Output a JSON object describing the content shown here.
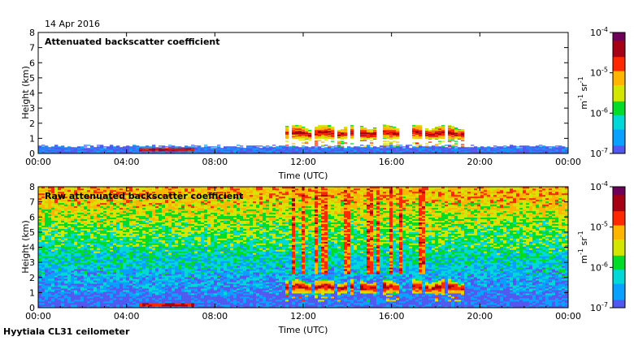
{
  "header": {
    "date": "14 Apr 2016"
  },
  "footer": {
    "instrument": "Hyytiala CL31 ceilometer"
  },
  "colors": {
    "scale": [
      "#ffffff",
      "#5058f0",
      "#0aa0ff",
      "#00d7d7",
      "#00dc28",
      "#d2e600",
      "#ffb400",
      "#ff2800",
      "#a50014",
      "#6e005a"
    ]
  },
  "chart_data": [
    {
      "type": "heatmap",
      "title": "Attenuated backscatter coefficient",
      "xlabel": "Time (UTC)",
      "ylabel": "Height (km)",
      "xlim": [
        0,
        24
      ],
      "ylim": [
        0,
        8
      ],
      "x_ticks": [
        "00:00",
        "04:00",
        "08:00",
        "12:00",
        "16:00",
        "20:00",
        "00:00"
      ],
      "y_ticks": [
        "0",
        "1",
        "2",
        "3",
        "4",
        "5",
        "6",
        "7",
        "8"
      ],
      "colorbar": {
        "scale": "log",
        "range": [
          1e-07,
          0.0001
        ],
        "ticks": [
          {
            "base": "10",
            "exp": "-7"
          },
          {
            "base": "10",
            "exp": "-6"
          },
          {
            "base": "10",
            "exp": "-5"
          },
          {
            "base": "10",
            "exp": "-4"
          }
        ],
        "unit": {
          "m": "m",
          "m_exp": "-1",
          "sr": "sr",
          "sr_exp": "-1"
        }
      },
      "features": [
        {
          "kind": "surface_layer",
          "x": [
            0,
            24
          ],
          "height_top_km": 0.45,
          "level": 1.4
        },
        {
          "kind": "low_band",
          "x": [
            4.6,
            7.0
          ],
          "height_km": [
            0.15,
            0.35
          ],
          "level": 7.5
        },
        {
          "kind": "cloud_cells",
          "x": [
            11.2,
            19.3
          ],
          "base_km": 1.0,
          "top_km": 1.8,
          "level": 6
        }
      ]
    },
    {
      "type": "heatmap",
      "title": "Raw attenuated backscatter coefficient",
      "xlabel": "Time (UTC)",
      "ylabel": "Height (km)",
      "xlim": [
        0,
        24
      ],
      "ylim": [
        0,
        8
      ],
      "x_ticks": [
        "00:00",
        "04:00",
        "08:00",
        "12:00",
        "16:00",
        "20:00",
        "00:00"
      ],
      "y_ticks": [
        "0",
        "1",
        "2",
        "3",
        "4",
        "5",
        "6",
        "7",
        "8"
      ],
      "colorbar": {
        "scale": "log",
        "range": [
          1e-07,
          0.0001
        ],
        "ticks": [
          {
            "base": "10",
            "exp": "-7"
          },
          {
            "base": "10",
            "exp": "-6"
          },
          {
            "base": "10",
            "exp": "-5"
          },
          {
            "base": "10",
            "exp": "-4"
          }
        ],
        "unit": {
          "m": "m",
          "m_exp": "-1",
          "sr": "sr",
          "sr_exp": "-1"
        }
      },
      "features": [
        {
          "kind": "noise_gradient",
          "x": [
            0,
            24
          ],
          "low_level": 1.5,
          "high_level": 5.8
        },
        {
          "kind": "low_band",
          "x": [
            4.6,
            7.0
          ],
          "height_km": [
            0.15,
            0.35
          ],
          "level": 7.5
        },
        {
          "kind": "cloud_cells",
          "x": [
            11.2,
            19.3
          ],
          "base_km": 1.0,
          "top_km": 1.8,
          "level": 6.5
        },
        {
          "kind": "high_noise_columns",
          "x": [
            11.0,
            17.5
          ],
          "level": 6.8
        }
      ]
    }
  ]
}
